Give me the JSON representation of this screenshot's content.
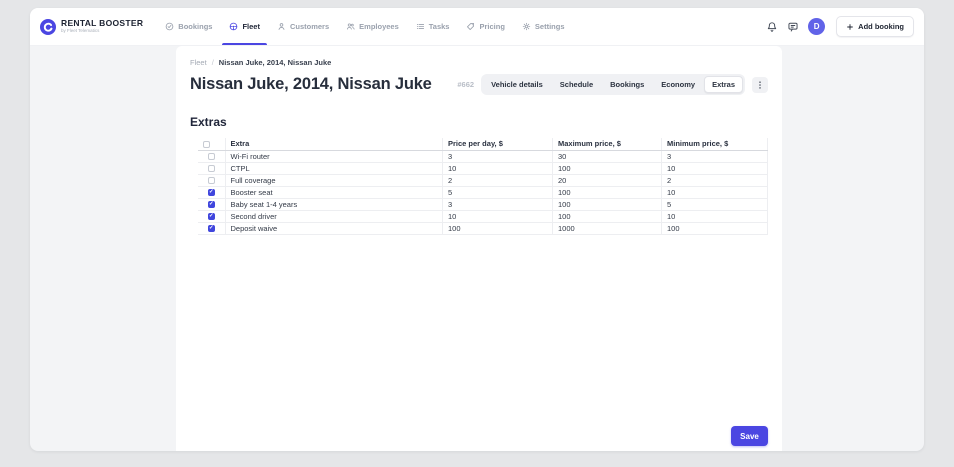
{
  "theme": {
    "accent": "#4b46e2",
    "checkbox_checked": "#4046dd",
    "avatar_bg": "#6163e8",
    "page_bg": "#e5e6e8",
    "window_bg": "#f3f4f6"
  },
  "header": {
    "logo": {
      "icon": "logo-icon",
      "title": "RENTAL BOOSTER",
      "tagline": "by Fleet Telematics"
    },
    "nav": [
      {
        "label": "Bookings",
        "icon": "check-circle-icon",
        "active": false
      },
      {
        "label": "Fleet",
        "icon": "steering-wheel-icon",
        "active": true
      },
      {
        "label": "Customers",
        "icon": "user-icon",
        "active": false
      },
      {
        "label": "Employees",
        "icon": "users-icon",
        "active": false
      },
      {
        "label": "Tasks",
        "icon": "tasks-icon",
        "active": false
      },
      {
        "label": "Pricing",
        "icon": "tag-icon",
        "active": false
      },
      {
        "label": "Settings",
        "icon": "gear-icon",
        "active": false
      }
    ],
    "actions": {
      "notifications_icon": "bell-icon",
      "messages_icon": "chat-icon",
      "avatar_initial": "D",
      "add_booking": {
        "icon": "plus-icon",
        "label": "Add booking"
      }
    }
  },
  "page": {
    "breadcrumb": {
      "parent": "Fleet",
      "separator": "/",
      "current": "Nissan Juke, 2014, Nissan Juke"
    },
    "title": "Nissan Juke, 2014, Nissan Juke",
    "vehicle_id": "#662",
    "tabs": [
      {
        "label": "Vehicle details",
        "active": false
      },
      {
        "label": "Schedule",
        "active": false
      },
      {
        "label": "Bookings",
        "active": false
      },
      {
        "label": "Economy",
        "active": false
      },
      {
        "label": "Extras",
        "active": true
      }
    ],
    "more_menu_icon": "kebab-icon",
    "section_title": "Extras"
  },
  "table": {
    "columns": [
      "Extra",
      "Price per day, $",
      "Maximum price, $",
      "Minimum price, $"
    ],
    "rows": [
      {
        "selected": false,
        "extra": "Wi-Fi router",
        "price_per_day": "3",
        "maximum_price": "30",
        "minimum_price": "3"
      },
      {
        "selected": false,
        "extra": "CTPL",
        "price_per_day": "10",
        "maximum_price": "100",
        "minimum_price": "10"
      },
      {
        "selected": false,
        "extra": "Full coverage",
        "price_per_day": "2",
        "maximum_price": "20",
        "minimum_price": "2"
      },
      {
        "selected": true,
        "extra": "Booster seat",
        "price_per_day": "5",
        "maximum_price": "100",
        "minimum_price": "10"
      },
      {
        "selected": true,
        "extra": "Baby seat 1-4 years",
        "price_per_day": "3",
        "maximum_price": "100",
        "minimum_price": "5"
      },
      {
        "selected": true,
        "extra": "Second driver",
        "price_per_day": "10",
        "maximum_price": "100",
        "minimum_price": "10"
      },
      {
        "selected": true,
        "extra": "Deposit waive",
        "price_per_day": "100",
        "maximum_price": "1000",
        "minimum_price": "100"
      }
    ]
  },
  "footer": {
    "save_label": "Save"
  }
}
